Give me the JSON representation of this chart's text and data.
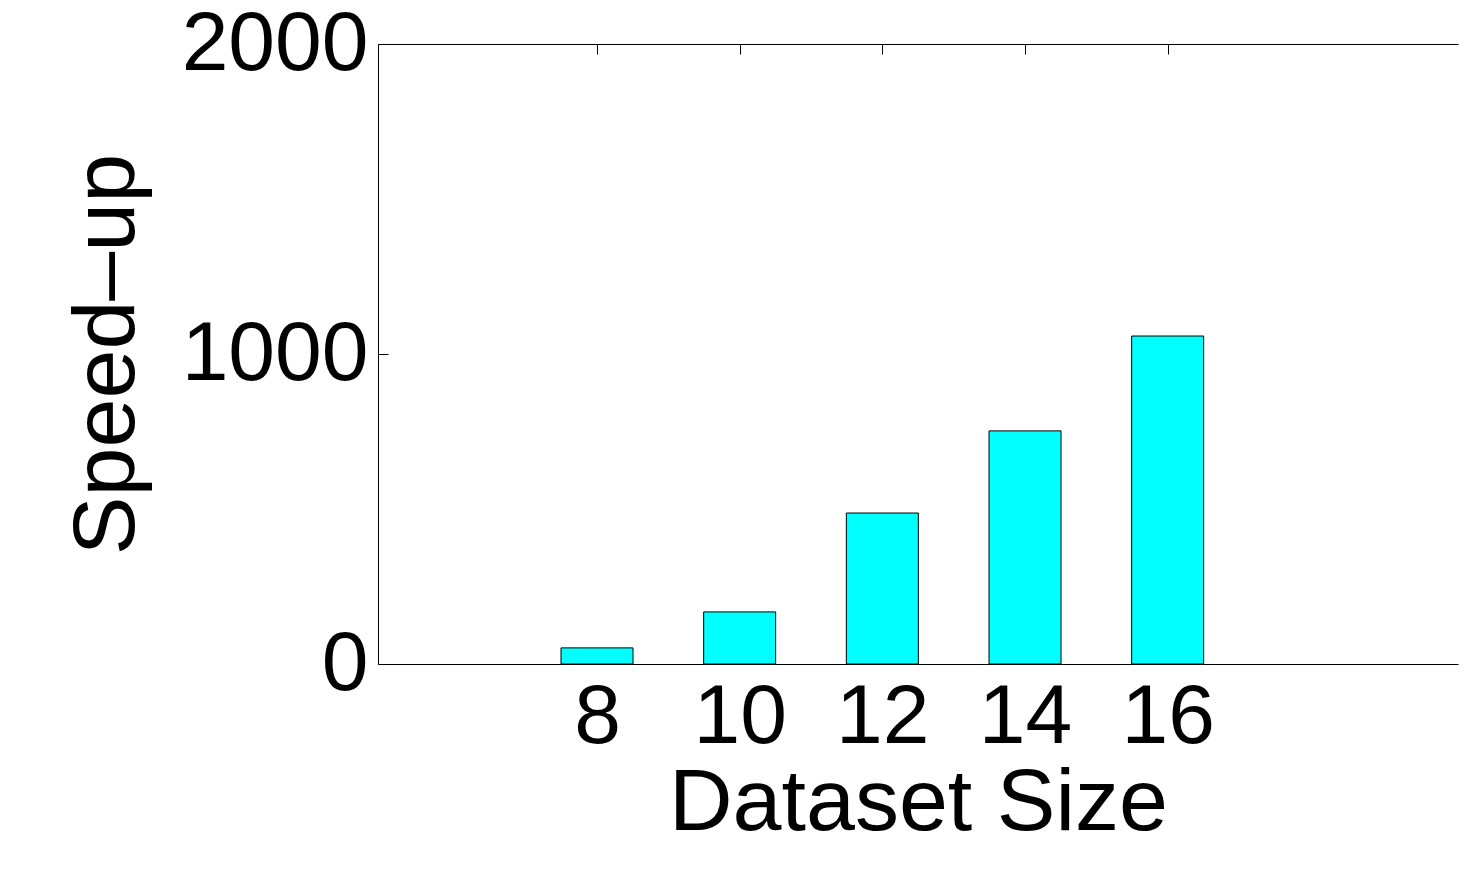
{
  "chart_data": {
    "type": "bar",
    "xlabel": "Dataset Size",
    "ylabel": "Speed–up",
    "x": [
      8,
      10,
      12,
      14,
      16
    ],
    "values": [
      52,
      168,
      487,
      752,
      1058
    ],
    "color": "#00ffff",
    "xlim": [
      5,
      20
    ],
    "xticks": [
      8,
      10,
      12,
      14,
      16
    ],
    "ylim": [
      0,
      2000
    ],
    "yticks": [
      0,
      1000,
      2000
    ],
    "grid": false
  }
}
